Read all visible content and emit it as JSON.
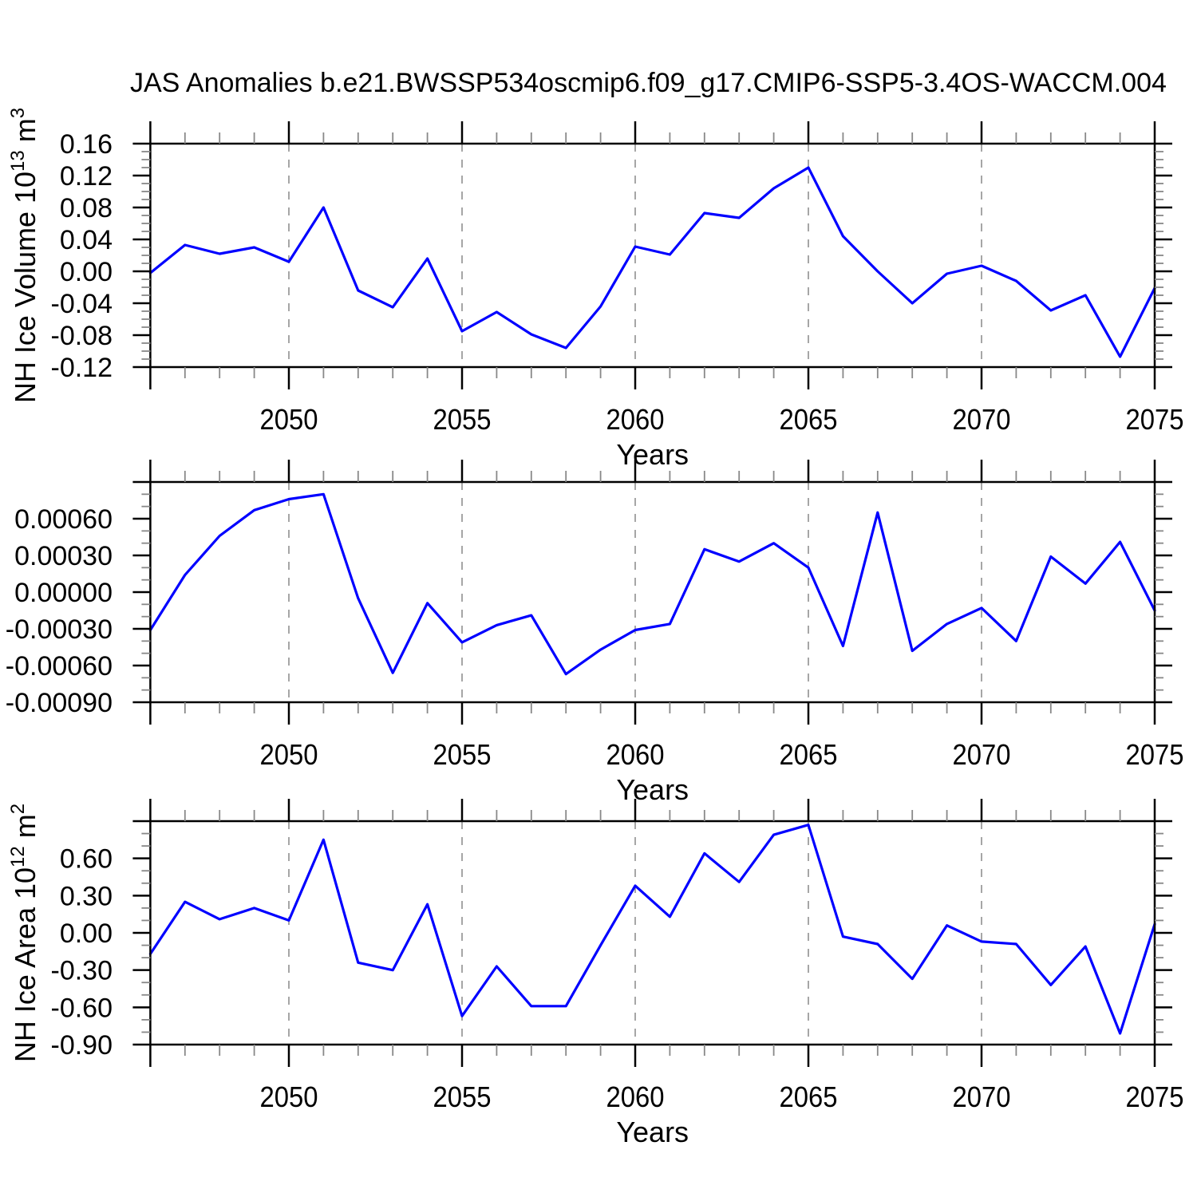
{
  "title": "JAS Anomalies b.e21.BWSSP534oscmip6.f09_g17.CMIP6-SSP5-3.4OS-WACCM.004",
  "colors": {
    "line": "#0000ff",
    "grid": "#808080",
    "axis": "#000000",
    "minor_tick": "#888888",
    "background": "#ffffff"
  },
  "chart_data": [
    {
      "type": "line",
      "name": "nh-ice-volume",
      "ylabel_text": "NH Ice Volume 10^13 m^3",
      "ylabel_segments": [
        {
          "t": "NH Ice Volume 10"
        },
        {
          "t": "13",
          "sup": true
        },
        {
          "t": " m"
        },
        {
          "t": "3",
          "sup": true
        }
      ],
      "xlabel": "Years",
      "xlim": [
        2046,
        2075
      ],
      "xticks": [
        2050,
        2055,
        2060,
        2065,
        2070,
        2075
      ],
      "grid_years": [
        2050,
        2055,
        2060,
        2065,
        2070
      ],
      "ylim": [
        -0.12,
        0.16
      ],
      "ymajor": 0.04,
      "yminor": 0.01,
      "ydecimals": 2,
      "label_skip_top": false,
      "x": [
        2046,
        2047,
        2048,
        2049,
        2050,
        2051,
        2052,
        2053,
        2054,
        2055,
        2056,
        2057,
        2058,
        2059,
        2060,
        2061,
        2062,
        2063,
        2064,
        2065,
        2066,
        2067,
        2068,
        2069,
        2070,
        2071,
        2072,
        2073,
        2074,
        2075
      ],
      "values": [
        -0.002,
        0.033,
        0.022,
        0.03,
        0.012,
        0.08,
        -0.024,
        -0.045,
        0.016,
        -0.075,
        -0.051,
        -0.079,
        -0.096,
        -0.044,
        0.031,
        0.021,
        0.073,
        0.067,
        0.104,
        0.13,
        0.044,
        0.0,
        -0.04,
        -0.003,
        0.007,
        -0.012,
        -0.049,
        -0.03,
        -0.107,
        -0.021
      ]
    },
    {
      "type": "line",
      "name": "middle-anomaly",
      "ylabel_text": "",
      "ylabel_segments": [],
      "xlabel": "Years",
      "xlim": [
        2046,
        2075
      ],
      "xticks": [
        2050,
        2055,
        2060,
        2065,
        2070,
        2075
      ],
      "grid_years": [
        2050,
        2055,
        2060,
        2065,
        2070
      ],
      "ylim": [
        -0.0009,
        0.0009
      ],
      "ymajor": 0.0003,
      "yminor": 0.0001,
      "ydecimals": 5,
      "label_skip_top": true,
      "x": [
        2046,
        2047,
        2048,
        2049,
        2050,
        2051,
        2052,
        2053,
        2054,
        2055,
        2056,
        2057,
        2058,
        2059,
        2060,
        2061,
        2062,
        2063,
        2064,
        2065,
        2066,
        2067,
        2068,
        2069,
        2070,
        2071,
        2072,
        2073,
        2074,
        2075
      ],
      "values": [
        -0.00031,
        0.00014,
        0.00046,
        0.00067,
        0.00076,
        0.0008,
        -5e-05,
        -0.00066,
        -9e-05,
        -0.00041,
        -0.00027,
        -0.00019,
        -0.00067,
        -0.00047,
        -0.00031,
        -0.00026,
        0.00035,
        0.00025,
        0.0004,
        0.0002,
        -0.00044,
        0.00065,
        -0.00048,
        -0.00026,
        -0.00013,
        -0.0004,
        0.00029,
        7e-05,
        0.00041,
        -0.00015
      ]
    },
    {
      "type": "line",
      "name": "nh-ice-area",
      "ylabel_text": "NH Ice Area 10^12 m^2",
      "ylabel_segments": [
        {
          "t": "NH Ice Area 10"
        },
        {
          "t": "12",
          "sup": true
        },
        {
          "t": " m"
        },
        {
          "t": "2",
          "sup": true
        }
      ],
      "xlabel": "Years",
      "xlim": [
        2046,
        2075
      ],
      "xticks": [
        2050,
        2055,
        2060,
        2065,
        2070,
        2075
      ],
      "grid_years": [
        2050,
        2055,
        2060,
        2065,
        2070
      ],
      "ylim": [
        -0.9,
        0.9
      ],
      "ymajor": 0.3,
      "yminor": 0.1,
      "ydecimals": 2,
      "label_skip_top": true,
      "x": [
        2046,
        2047,
        2048,
        2049,
        2050,
        2051,
        2052,
        2053,
        2054,
        2055,
        2056,
        2057,
        2058,
        2059,
        2060,
        2061,
        2062,
        2063,
        2064,
        2065,
        2066,
        2067,
        2068,
        2069,
        2070,
        2071,
        2072,
        2073,
        2074,
        2075
      ],
      "values": [
        -0.17,
        0.25,
        0.11,
        0.2,
        0.1,
        0.75,
        -0.24,
        -0.3,
        0.23,
        -0.67,
        -0.27,
        -0.59,
        -0.59,
        -0.1,
        0.38,
        0.13,
        0.64,
        0.41,
        0.79,
        0.87,
        -0.03,
        -0.09,
        -0.37,
        0.06,
        -0.07,
        -0.09,
        -0.42,
        -0.11,
        -0.81,
        0.07
      ]
    }
  ]
}
